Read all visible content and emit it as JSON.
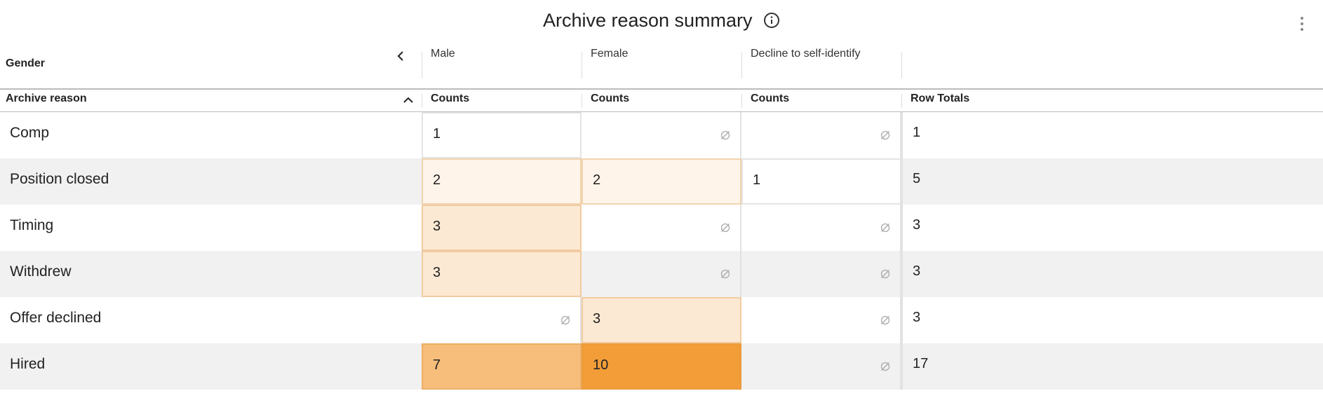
{
  "header": {
    "title": "Archive reason summary"
  },
  "table": {
    "column_dimension": "Gender",
    "row_dimension": "Archive reason",
    "columns": [
      "Male",
      "Female",
      "Decline to self-identify"
    ],
    "measures": [
      "Counts",
      "Counts",
      "Counts"
    ],
    "totals_label": "Row Totals",
    "rows": [
      {
        "label": "Comp",
        "values": [
          1,
          null,
          null
        ],
        "total": 1
      },
      {
        "label": "Position closed",
        "values": [
          2,
          2,
          1
        ],
        "total": 5
      },
      {
        "label": "Timing",
        "values": [
          3,
          null,
          null
        ],
        "total": 3
      },
      {
        "label": "Withdrew",
        "values": [
          3,
          null,
          null
        ],
        "total": 3
      },
      {
        "label": "Offer declined",
        "values": [
          null,
          3,
          null
        ],
        "total": 3
      },
      {
        "label": "Hired",
        "values": [
          7,
          10,
          null
        ],
        "total": 17
      }
    ],
    "heat_color": "#f29d38"
  }
}
